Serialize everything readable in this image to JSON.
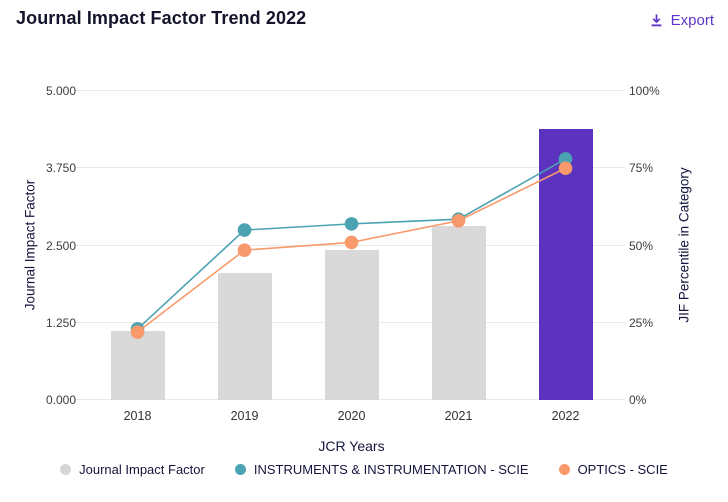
{
  "header": {
    "title": "Journal Impact Factor Trend 2022",
    "export_label": "Export",
    "export_icon": "download-icon",
    "accent_color": "#5E35C8"
  },
  "chart_data": {
    "type": "combo-bar-line",
    "categories": [
      "2018",
      "2019",
      "2020",
      "2021",
      "2022"
    ],
    "bars": {
      "name": "Journal Impact Factor",
      "values": [
        1.12,
        2.05,
        2.42,
        2.81,
        4.38
      ],
      "colors": [
        "#D9D9D9",
        "#D9D9D9",
        "#D9D9D9",
        "#D9D9D9",
        "#5B33BF"
      ]
    },
    "series": [
      {
        "name": "INSTRUMENTS & INSTRUMENTATION - SCIE",
        "color": "#4BA2B2",
        "values": [
          23,
          55,
          57,
          58.5,
          78
        ]
      },
      {
        "name": "OPTICS - SCIE",
        "color": "#F8996B",
        "values": [
          22,
          48.5,
          51,
          58,
          75
        ]
      }
    ],
    "xlabel": "JCR Years",
    "left_axis": {
      "label": "Journal Impact Factor",
      "min": 0,
      "max": 5,
      "ticks": [
        "0.000",
        "1.250",
        "2.500",
        "3.750",
        "5.000"
      ]
    },
    "right_axis": {
      "label": "JIF Percentile in Category",
      "min": 0,
      "max": 100,
      "ticks": [
        "0%",
        "25%",
        "50%",
        "75%",
        "100%"
      ]
    },
    "legend": [
      {
        "label": "Journal Impact Factor",
        "color": "#D6D6D6"
      },
      {
        "label": "INSTRUMENTS & INSTRUMENTATION - SCIE",
        "color": "#4BA2B2"
      },
      {
        "label": "OPTICS - SCIE",
        "color": "#F8996B"
      }
    ],
    "grid": true,
    "legend_position": "bottom",
    "gridline_color": "#E9E9E9"
  }
}
